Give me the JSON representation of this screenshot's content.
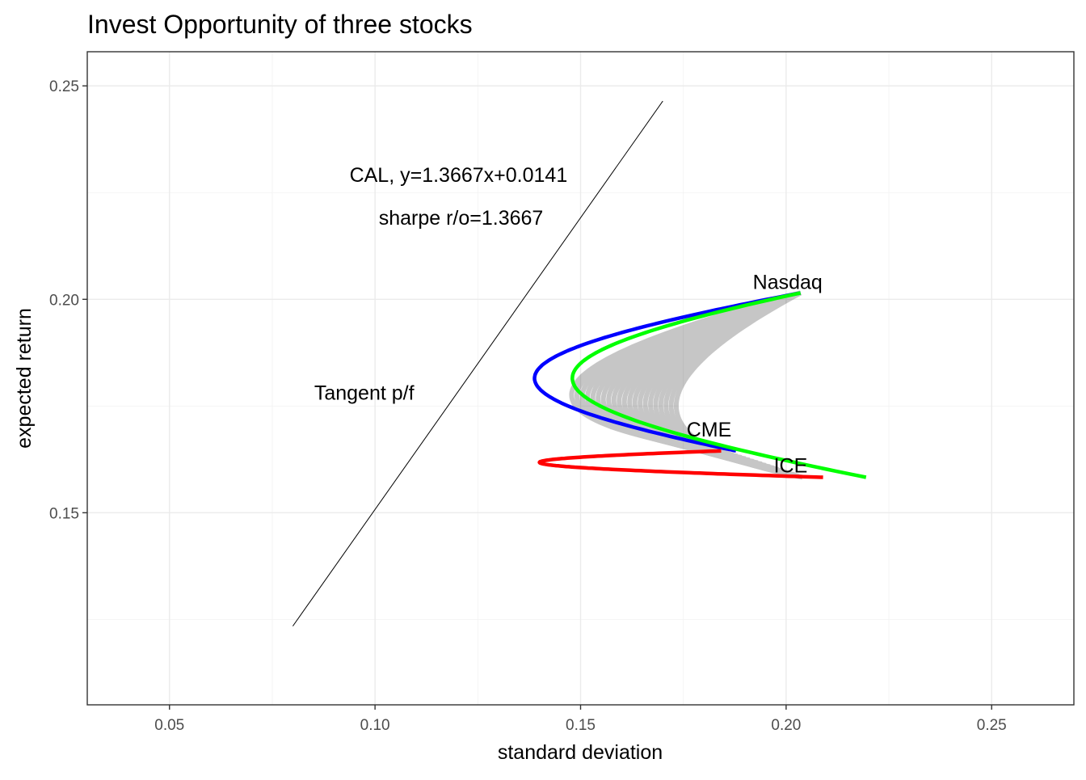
{
  "chart_data": {
    "type": "line",
    "title": "Invest Opportunity of three stocks",
    "xlabel": "standard deviation",
    "ylabel": "expected return",
    "xlim": [
      0.03,
      0.27
    ],
    "ylim": [
      0.105,
      0.258
    ],
    "x_ticks": [
      {
        "value": 0.05,
        "label": "0.05"
      },
      {
        "value": 0.1,
        "label": "0.10"
      },
      {
        "value": 0.15,
        "label": "0.15"
      },
      {
        "value": 0.2,
        "label": "0.20"
      },
      {
        "value": 0.25,
        "label": "0.25"
      }
    ],
    "y_ticks": [
      {
        "value": 0.15,
        "label": "0.15"
      },
      {
        "value": 0.2,
        "label": "0.20"
      },
      {
        "value": 0.25,
        "label": "0.25"
      }
    ],
    "grid": true,
    "legend": "none",
    "assets": [
      {
        "name": "Nasdaq",
        "sd": 0.2035,
        "ret": 0.2015
      },
      {
        "name": "CME",
        "sd": 0.1842,
        "ret": 0.1645
      },
      {
        "name": "ICE",
        "sd": 0.204,
        "ret": 0.1583
      }
    ],
    "tangent": {
      "label": "Tangent p/f",
      "sd": 0.1178,
      "ret": 0.175
    },
    "frontiers": [
      {
        "pair": "Nasdaq-CME",
        "color": "#0000ff",
        "a": "Nasdaq",
        "b": "CME",
        "min_var_sd": 0.1388,
        "min_var_ret": 0.1815
      },
      {
        "pair": "Nasdaq-ICE",
        "color": "#00ff00",
        "a": "Nasdaq",
        "b": "ICE",
        "min_var_sd": 0.148,
        "min_var_ret": 0.1815
      },
      {
        "pair": "CME-ICE",
        "color": "#ff0000",
        "a": "CME",
        "b": "ICE",
        "min_var_sd": 0.14,
        "min_var_ret": 0.1618
      }
    ],
    "cal": {
      "slope": 1.3667,
      "intercept": 0.0141,
      "x_range": [
        0.08,
        0.17
      ],
      "equation_label": "CAL, y=1.3667x+0.0141",
      "sharpe_label": "sharpe r/o=1.3667",
      "color": "#000000"
    },
    "portfolio_cloud": {
      "color": "#000000",
      "opacity": 0.22,
      "curves": 21
    }
  }
}
